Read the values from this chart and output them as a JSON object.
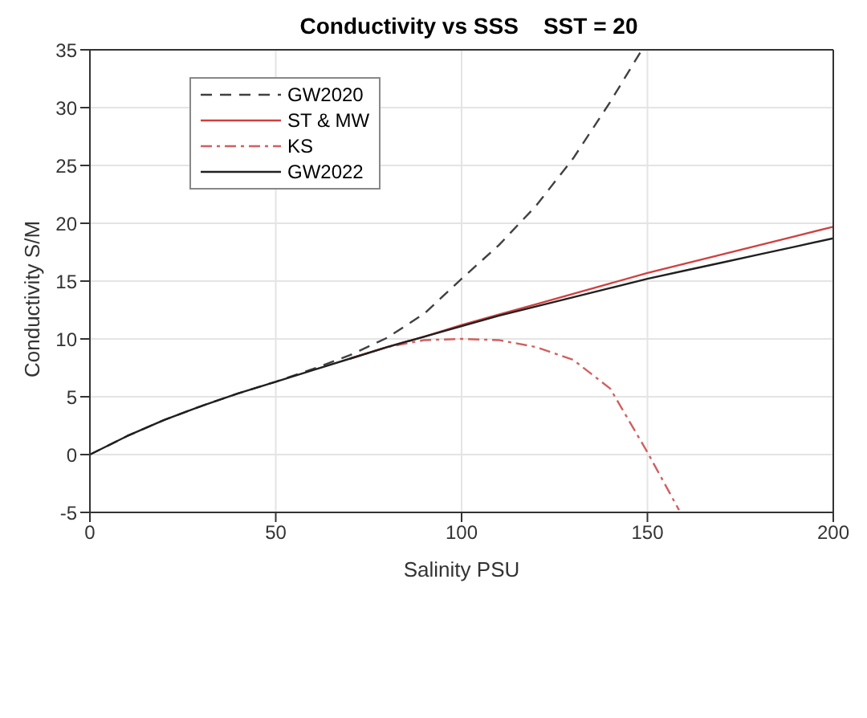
{
  "chart_data": {
    "type": "line",
    "title": "Conductivity vs SSS    SST = 20",
    "xlabel": "Salinity  PSU",
    "ylabel": "Conductivity   S/M",
    "xlim": [
      0,
      200
    ],
    "xticks": [
      0,
      50,
      100,
      150,
      200
    ],
    "ylim": [
      -5,
      35
    ],
    "yticks": [
      -5,
      0,
      5,
      10,
      15,
      20,
      25,
      30,
      35
    ],
    "grid": true,
    "legend": "top left",
    "marker": "none",
    "series": [
      {
        "name": "GW2020",
        "color": "#404040",
        "line_style": "dashed",
        "x": [
          0,
          10,
          20,
          30,
          40,
          50,
          60,
          70,
          80,
          90,
          100,
          110,
          120,
          130,
          140,
          148.5
        ],
        "values": [
          0,
          1.6,
          3.0,
          4.2,
          5.3,
          6.3,
          7.4,
          8.6,
          10.1,
          12.2,
          15.2,
          18.1,
          21.5,
          25.6,
          30.5,
          35
        ]
      },
      {
        "name": "ST & MW",
        "color": "#d04040",
        "line_style": "solid",
        "x": [
          70,
          80,
          90,
          100,
          110,
          120,
          130,
          140,
          150,
          160,
          170,
          180,
          190,
          200
        ],
        "values": [
          8.3,
          9.3,
          10.2,
          11.2,
          12.1,
          13.0,
          13.9,
          14.8,
          15.7,
          16.5,
          17.3,
          18.1,
          18.9,
          19.7
        ]
      },
      {
        "name": "KS",
        "color": "#d06060",
        "line_style": "dashdot",
        "x": [
          70,
          80,
          90,
          100,
          110,
          120,
          130,
          140,
          150,
          158.5
        ],
        "values": [
          8.3,
          9.3,
          9.9,
          10.0,
          9.9,
          9.3,
          8.2,
          5.7,
          0.2,
          -4.8
        ]
      },
      {
        "name": "GW2022",
        "color": "#202020",
        "line_style": "solid",
        "x": [
          0,
          10,
          20,
          30,
          40,
          50,
          60,
          70,
          80,
          90,
          100,
          110,
          120,
          130,
          140,
          150,
          160,
          170,
          180,
          190,
          200
        ],
        "values": [
          0,
          1.6,
          3.0,
          4.2,
          5.3,
          6.3,
          7.3,
          8.3,
          9.3,
          10.2,
          11.1,
          12.0,
          12.8,
          13.6,
          14.4,
          15.2,
          15.9,
          16.6,
          17.3,
          18.0,
          18.7
        ]
      }
    ]
  }
}
